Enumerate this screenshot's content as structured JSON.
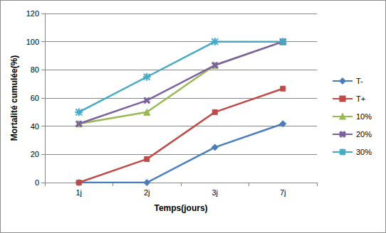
{
  "chart_data": {
    "type": "line",
    "x_label": "Temps(jours)",
    "y_label": "Mortalité cumulée(%)",
    "categories": [
      "1j",
      "2j",
      "3j",
      "7j"
    ],
    "ylim": [
      0,
      120
    ],
    "yticks": [
      0,
      20,
      40,
      60,
      80,
      100,
      120
    ],
    "grid": true,
    "legend": "right",
    "series": [
      {
        "name": "T-",
        "color": "#4a7ebb",
        "marker": "diamond",
        "values": [
          0,
          0,
          25,
          41.7
        ]
      },
      {
        "name": "T+",
        "color": "#be4b48",
        "marker": "square",
        "values": [
          0,
          16.7,
          50,
          66.7
        ]
      },
      {
        "name": "10%",
        "color": "#98b954",
        "marker": "triangle",
        "values": [
          41.7,
          50,
          83.3,
          100
        ]
      },
      {
        "name": "20%",
        "color": "#7d60a0",
        "marker": "x",
        "values": [
          41.7,
          58.3,
          83.3,
          100
        ]
      },
      {
        "name": "30%",
        "color": "#46aac5",
        "marker": "star",
        "values": [
          50,
          75,
          100,
          100
        ]
      }
    ]
  }
}
